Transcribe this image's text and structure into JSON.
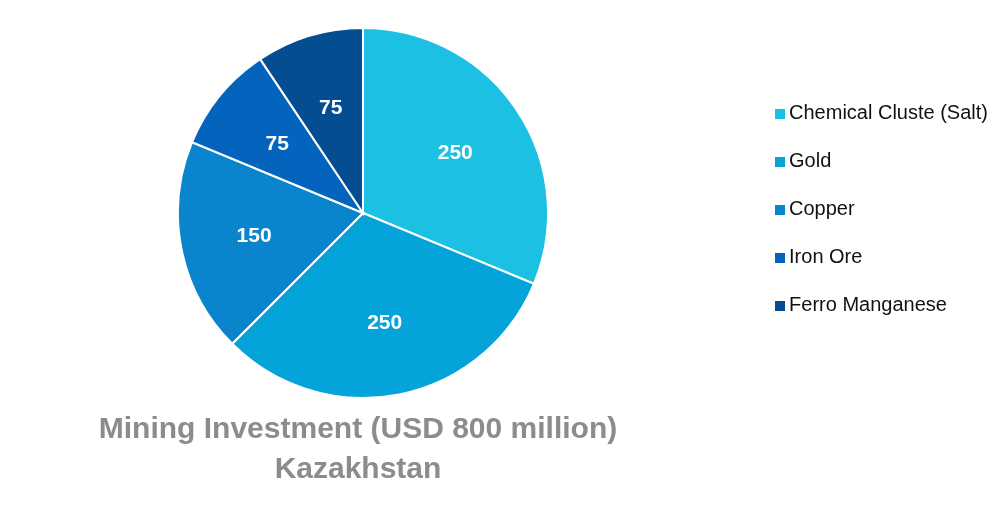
{
  "chart_data": {
    "type": "pie",
    "title": "Mining Investment (USD 800 million)",
    "subtitle": "Kazakhstan",
    "categories": [
      "Chemical Cluste (Salt)",
      "Gold",
      "Copper",
      "Iron Ore",
      "Ferro Manganese"
    ],
    "values": [
      250,
      250,
      150,
      75,
      75
    ],
    "colors": [
      "#1bc0e3",
      "#04a3d9",
      "#0a84cc",
      "#0363bd",
      "#054d91"
    ],
    "data_labels": true,
    "legend": "right"
  }
}
